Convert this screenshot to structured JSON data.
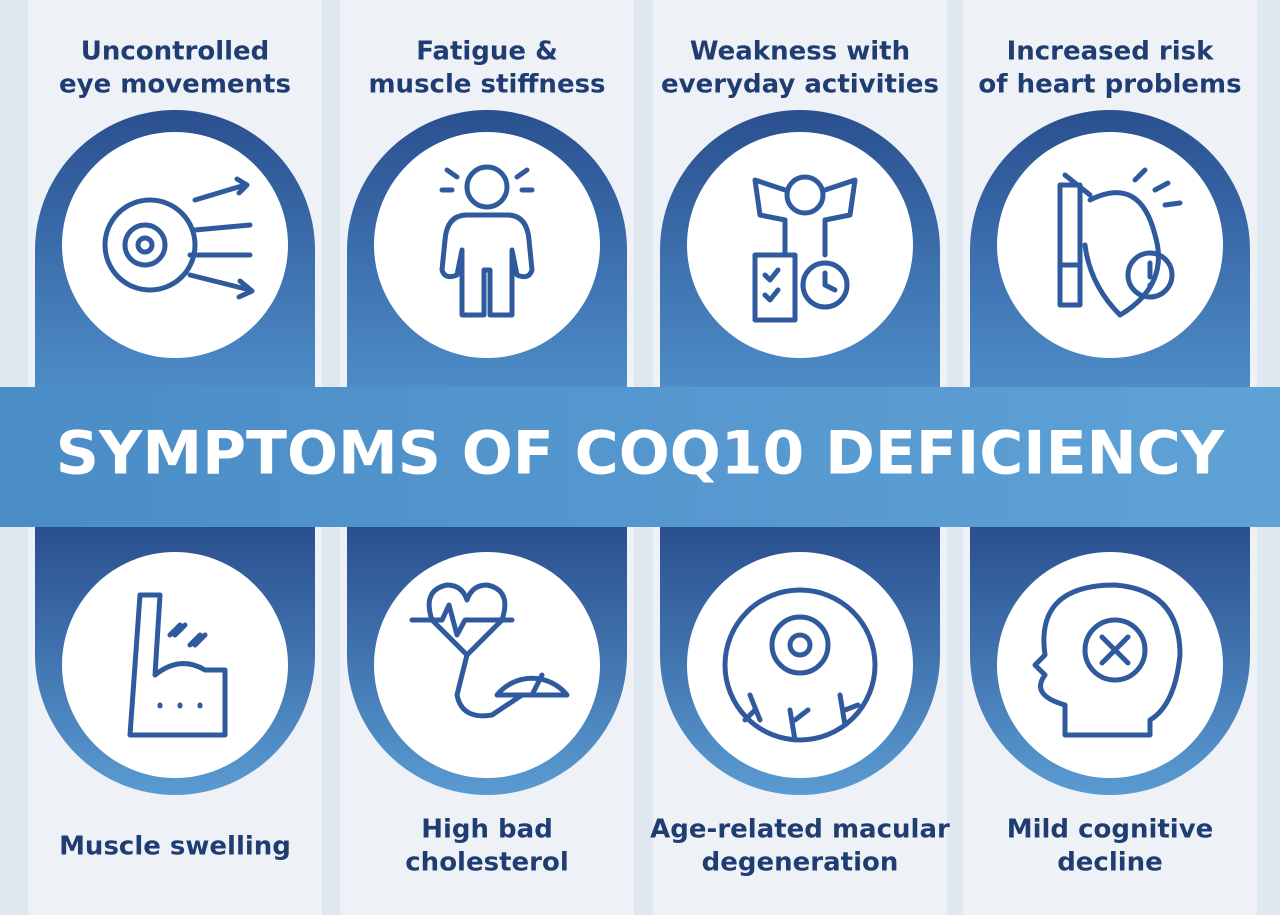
{
  "title": "SYMPTOMS OF COQ10 DEFICIENCY",
  "top_items": [
    {
      "lines": [
        "Uncontrolled",
        "eye movements"
      ]
    },
    {
      "lines": [
        "Fatigue &",
        "muscle stiffness"
      ]
    },
    {
      "lines": [
        "Weakness with",
        "everyday activities"
      ]
    },
    {
      "lines": [
        "Increased risk",
        "of heart problems"
      ]
    }
  ],
  "bottom_items": [
    {
      "lines": [
        "Muscle swelling"
      ]
    },
    {
      "lines": [
        "High bad",
        "cholesterol"
      ]
    },
    {
      "lines": [
        "Age-related macular",
        "degeneration"
      ]
    },
    {
      "lines": [
        "Mild cognitive",
        "decline"
      ]
    }
  ]
}
